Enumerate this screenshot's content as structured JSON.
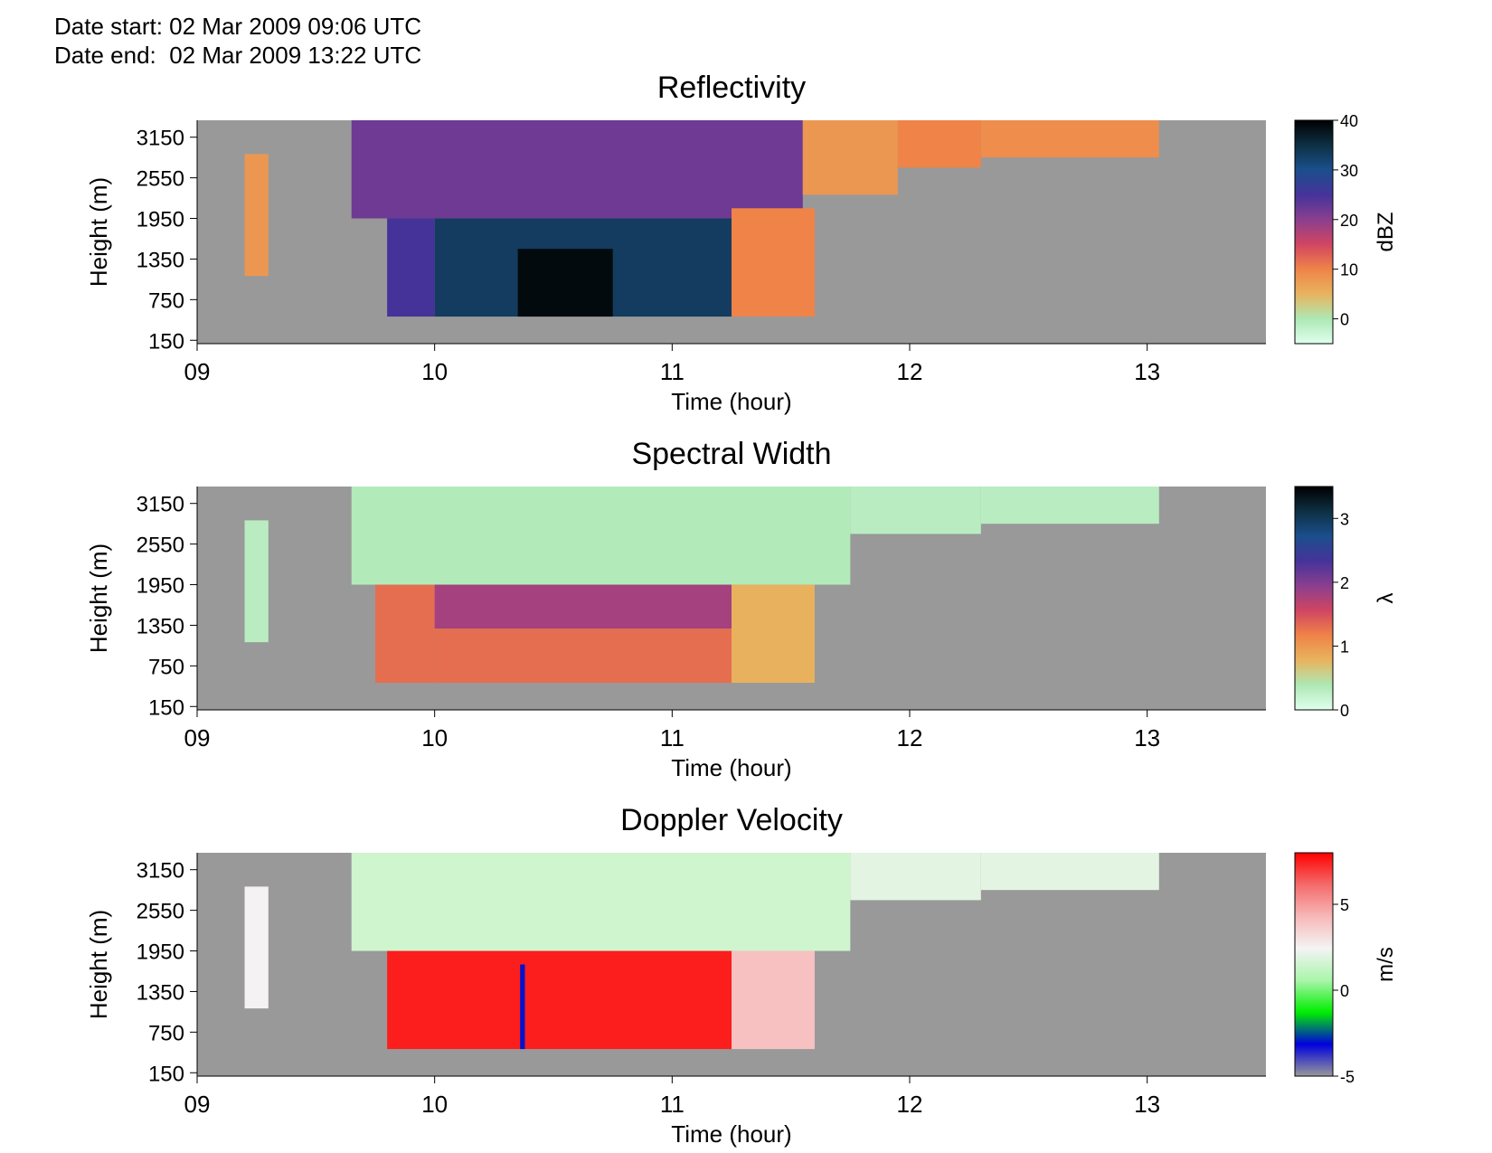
{
  "header": {
    "date_start": "Date start: 02 Mar 2009 09:06 UTC",
    "date_end": "Date end:  02 Mar 2009 13:22 UTC"
  },
  "chart_data": [
    {
      "type": "heatmap",
      "title": "Reflectivity",
      "xlabel": "Time (hour)",
      "ylabel": "Height (m)",
      "xlim": [
        9.0,
        13.5
      ],
      "ylim": [
        100,
        3400
      ],
      "x_ticks": [
        9,
        10,
        11,
        12,
        13
      ],
      "x_tick_labels": [
        "09",
        "10",
        "11",
        "12",
        "13"
      ],
      "y_ticks": [
        150,
        750,
        1350,
        1950,
        2550,
        3150
      ],
      "y_tick_labels": [
        "150",
        "750",
        "1350",
        "1950",
        "2550",
        "3150"
      ],
      "background_color": "#999999",
      "colorbar": {
        "label": "dBZ",
        "range": [
          -5,
          40
        ],
        "ticks": [
          0,
          10,
          20,
          30,
          40
        ],
        "tick_labels": [
          "0",
          "10",
          "20",
          "30",
          "40"
        ],
        "colors": [
          "#dfffee",
          "#aee8b4",
          "#e8b45e",
          "#ef8348",
          "#d14562",
          "#8a3f8f",
          "#45339a",
          "#1b4f8c",
          "#0d3043",
          "#000000"
        ]
      },
      "regions": [
        {
          "t0": 9.2,
          "t1": 9.3,
          "h0": 1100,
          "h1": 2900,
          "value": 8
        },
        {
          "t0": 9.65,
          "t1": 11.55,
          "h0": 1950,
          "h1": 3400,
          "value": 22
        },
        {
          "t0": 9.8,
          "t1": 10.0,
          "h0": 500,
          "h1": 1950,
          "value": 25
        },
        {
          "t0": 10.0,
          "t1": 11.25,
          "h0": 500,
          "h1": 1950,
          "value": 33
        },
        {
          "t0": 10.35,
          "t1": 10.75,
          "h0": 500,
          "h1": 1500,
          "value": 39
        },
        {
          "t0": 11.25,
          "t1": 11.6,
          "h0": 500,
          "h1": 2100,
          "value": 10
        },
        {
          "t0": 11.55,
          "t1": 11.95,
          "h0": 2300,
          "h1": 3400,
          "value": 8
        },
        {
          "t0": 11.95,
          "t1": 12.3,
          "h0": 2700,
          "h1": 3400,
          "value": 10
        },
        {
          "t0": 12.3,
          "t1": 13.05,
          "h0": 2850,
          "h1": 3400,
          "value": 9
        }
      ]
    },
    {
      "type": "heatmap",
      "title": "Spectral Width",
      "xlabel": "Time (hour)",
      "ylabel": "Height (m)",
      "xlim": [
        9.0,
        13.5
      ],
      "ylim": [
        100,
        3400
      ],
      "x_ticks": [
        9,
        10,
        11,
        12,
        13
      ],
      "x_tick_labels": [
        "09",
        "10",
        "11",
        "12",
        "13"
      ],
      "y_ticks": [
        150,
        750,
        1350,
        1950,
        2550,
        3150
      ],
      "y_tick_labels": [
        "150",
        "750",
        "1350",
        "1950",
        "2550",
        "3150"
      ],
      "background_color": "#999999",
      "colorbar": {
        "label": "λ",
        "range": [
          0,
          3.5
        ],
        "ticks": [
          0,
          1,
          2,
          3
        ],
        "tick_labels": [
          "0",
          "1",
          "2",
          "3"
        ],
        "colors": [
          "#dfffee",
          "#aee8b4",
          "#e8b45e",
          "#ef8348",
          "#d14562",
          "#8a3f8f",
          "#45339a",
          "#1b4f8c",
          "#0d3043",
          "#000000"
        ]
      },
      "regions": [
        {
          "t0": 9.2,
          "t1": 9.3,
          "h0": 1100,
          "h1": 2900,
          "value": 0.3
        },
        {
          "t0": 9.65,
          "t1": 11.75,
          "h0": 1950,
          "h1": 3400,
          "value": 0.35
        },
        {
          "t0": 9.75,
          "t1": 10.0,
          "h0": 500,
          "h1": 1950,
          "value": 1.3
        },
        {
          "t0": 10.0,
          "t1": 11.25,
          "h0": 1300,
          "h1": 1950,
          "value": 1.8
        },
        {
          "t0": 10.0,
          "t1": 11.25,
          "h0": 500,
          "h1": 1300,
          "value": 1.3
        },
        {
          "t0": 11.25,
          "t1": 11.6,
          "h0": 500,
          "h1": 1950,
          "value": 0.8
        },
        {
          "t0": 11.75,
          "t1": 12.3,
          "h0": 2700,
          "h1": 3400,
          "value": 0.3
        },
        {
          "t0": 12.3,
          "t1": 13.05,
          "h0": 2850,
          "h1": 3400,
          "value": 0.3
        }
      ]
    },
    {
      "type": "heatmap",
      "title": "Doppler Velocity",
      "xlabel": "Time (hour)",
      "ylabel": "Height (m)",
      "xlim": [
        9.0,
        13.5
      ],
      "ylim": [
        100,
        3400
      ],
      "x_ticks": [
        9,
        10,
        11,
        12,
        13
      ],
      "x_tick_labels": [
        "09",
        "10",
        "11",
        "12",
        "13"
      ],
      "y_ticks": [
        150,
        750,
        1350,
        1950,
        2550,
        3150
      ],
      "y_tick_labels": [
        "150",
        "750",
        "1350",
        "1950",
        "2550",
        "3150"
      ],
      "background_color": "#999999",
      "colorbar": {
        "label": "m/s",
        "range": [
          -5,
          8
        ],
        "ticks": [
          -5,
          0,
          5
        ],
        "tick_labels": [
          "-5",
          "0",
          "5"
        ],
        "colors": [
          "#999999",
          "#0000dd",
          "#00ee00",
          "#aaf5aa",
          "#f4f4f4",
          "#f7b8b8",
          "#f46b6b",
          "#ff0000"
        ]
      },
      "regions": [
        {
          "t0": 9.2,
          "t1": 9.3,
          "h0": 1100,
          "h1": 2900,
          "value": 2.5
        },
        {
          "t0": 9.65,
          "t1": 11.75,
          "h0": 1950,
          "h1": 3400,
          "value": 1.5
        },
        {
          "t0": 9.8,
          "t1": 11.25,
          "h0": 500,
          "h1": 1950,
          "value": 7.5
        },
        {
          "t0": 10.36,
          "t1": 10.38,
          "h0": 500,
          "h1": 1750,
          "value": -3
        },
        {
          "t0": 11.25,
          "t1": 11.6,
          "h0": 500,
          "h1": 1950,
          "value": 4
        },
        {
          "t0": 11.75,
          "t1": 12.3,
          "h0": 2700,
          "h1": 3400,
          "value": 2
        },
        {
          "t0": 12.3,
          "t1": 13.05,
          "h0": 2850,
          "h1": 3400,
          "value": 2
        }
      ]
    }
  ]
}
